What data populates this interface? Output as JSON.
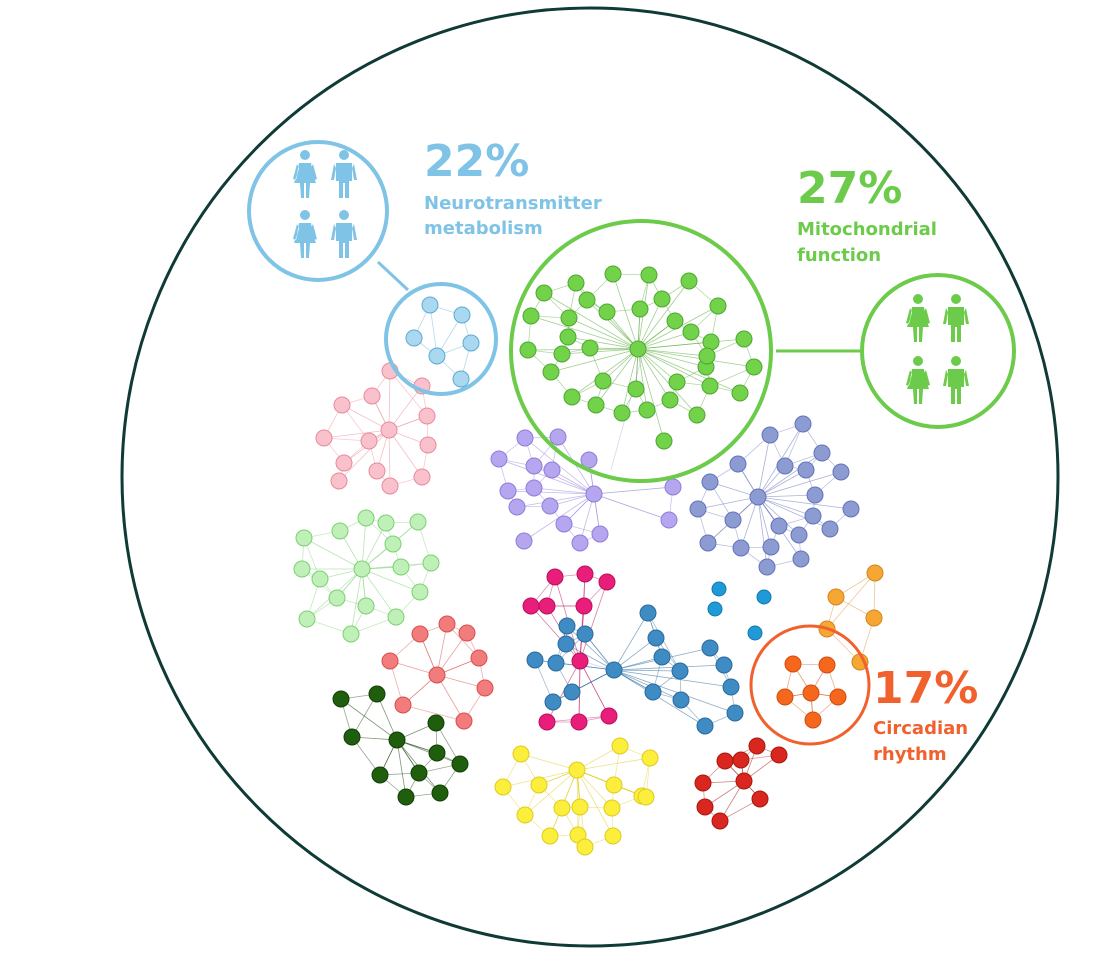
{
  "highlights": [
    {
      "key": "neuro",
      "percent": "22%",
      "label_line1": "Neurotransmitter",
      "label_line2": "metabolism",
      "color": "#7fc3e6"
    },
    {
      "key": "mito",
      "percent": "27%",
      "label_line1": "Mitochondrial",
      "label_line2": "function",
      "color": "#6ccb4a"
    },
    {
      "key": "circ",
      "percent": "17%",
      "label_line1": "Circadian",
      "label_line2": "rhythm",
      "color": "#f0612e"
    }
  ],
  "clusters": [
    {
      "key": "neuro",
      "color": "#a9d8f0",
      "stroke": "#5ea9d6"
    },
    {
      "key": "mito",
      "color": "#72d24a",
      "stroke": "#4ea830"
    },
    {
      "key": "pink",
      "color": "#f9c1cc",
      "stroke": "#e88a9c"
    },
    {
      "key": "lavender",
      "color": "#b6a6ef",
      "stroke": "#8f7dd9"
    },
    {
      "key": "periwinkle",
      "color": "#8d9bd3",
      "stroke": "#6473b8"
    },
    {
      "key": "lightgreen",
      "color": "#bff0b8",
      "stroke": "#7cd072"
    },
    {
      "key": "salmon",
      "color": "#f27c7c",
      "stroke": "#d84e4e"
    },
    {
      "key": "darkgreen",
      "color": "#1f5e0d",
      "stroke": "#133e07"
    },
    {
      "key": "magenta",
      "color": "#e91e7a",
      "stroke": "#b8125c"
    },
    {
      "key": "steelblue",
      "color": "#3f8bc4",
      "stroke": "#2a6a9c"
    },
    {
      "key": "cyan",
      "color": "#1f9ad6",
      "stroke": "#1578ad"
    },
    {
      "key": "gold",
      "color": "#f6a733",
      "stroke": "#d4851a"
    },
    {
      "key": "orange",
      "color": "#f4671d",
      "stroke": "#d34c0c"
    },
    {
      "key": "yellow",
      "color": "#fcee3c",
      "stroke": "#e0cb1a"
    },
    {
      "key": "red",
      "color": "#d9261f",
      "stroke": "#a8170f"
    }
  ],
  "colors": {
    "outer_ring": "#0f3a36"
  }
}
